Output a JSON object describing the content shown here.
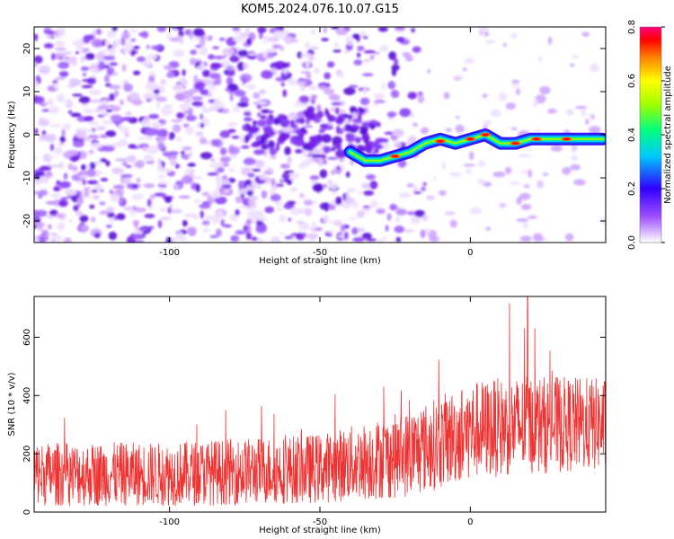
{
  "title": "KOM5.2024.076.10.07.G15",
  "chart_data": [
    {
      "type": "heatmap",
      "xlabel": "Height of straight line (km)",
      "ylabel": "Frequency (Hz)",
      "xlim": [
        -145,
        45
      ],
      "ylim": [
        -25,
        25
      ],
      "x_ticks": [
        -100,
        -50,
        0
      ],
      "y_ticks": [
        -20,
        -10,
        0,
        10,
        20
      ],
      "colorbar": {
        "label": "Normalized spectral amplitude",
        "range": [
          0.0,
          0.8
        ],
        "ticks": [
          "0.0",
          "0.2",
          "0.4",
          "0.6",
          "0.8"
        ]
      },
      "ridge": [
        {
          "x": -40,
          "y": -4
        },
        {
          "x": -35,
          "y": -6
        },
        {
          "x": -30,
          "y": -6
        },
        {
          "x": -25,
          "y": -5
        },
        {
          "x": -20,
          "y": -4
        },
        {
          "x": -15,
          "y": -2
        },
        {
          "x": -10,
          "y": -1
        },
        {
          "x": -5,
          "y": -2
        },
        {
          "x": 0,
          "y": -1
        },
        {
          "x": 5,
          "y": 0
        },
        {
          "x": 10,
          "y": -2
        },
        {
          "x": 15,
          "y": -2
        },
        {
          "x": 20,
          "y": -1
        },
        {
          "x": 25,
          "y": -1
        },
        {
          "x": 30,
          "y": -1
        },
        {
          "x": 35,
          "y": -1
        },
        {
          "x": 40,
          "y": -1
        },
        {
          "x": 44,
          "y": -1
        }
      ]
    },
    {
      "type": "line",
      "xlabel": "Height of straight line (km)",
      "ylabel": "SNR (10 * v/v)",
      "xlim": [
        -145,
        45
      ],
      "ylim": [
        0,
        740
      ],
      "x_ticks": [
        -100,
        -50,
        0
      ],
      "y_ticks": [
        0,
        200,
        400,
        600
      ],
      "line_color": "#ee3333",
      "trend": [
        {
          "x": -145,
          "mean": 130,
          "spread": 110
        },
        {
          "x": -100,
          "mean": 130,
          "spread": 110
        },
        {
          "x": -50,
          "mean": 150,
          "spread": 120
        },
        {
          "x": -20,
          "mean": 200,
          "spread": 150
        },
        {
          "x": 0,
          "mean": 280,
          "spread": 170
        },
        {
          "x": 20,
          "mean": 300,
          "spread": 170
        },
        {
          "x": 45,
          "mean": 300,
          "spread": 160
        }
      ],
      "peak": {
        "x": 19,
        "y": 740
      }
    }
  ]
}
